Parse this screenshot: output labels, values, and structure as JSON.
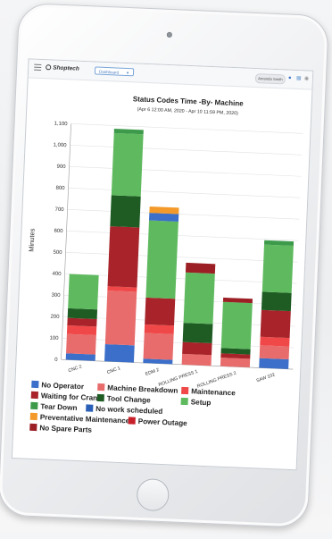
{
  "app": {
    "logo_text": "Shoptech",
    "nav_select_label": "Dashboard",
    "user_label": "Amanda Smith",
    "icons": [
      "menu-icon",
      "bell-icon",
      "grid-icon",
      "user-icon"
    ]
  },
  "colors": {
    "no_operator": "#3b6fc9",
    "machine_breakdown": "#e86c6c",
    "maintenance": "#f04848",
    "waiting_for_crane": "#a8242a",
    "tool_change": "#1e5c24",
    "setup": "#5fba5f",
    "tear_down": "#3c9a4a",
    "no_work_scheduled": "#2a5fb8",
    "preventative_maintenance": "#f39a2a",
    "power_outage": "#c8202a",
    "no_spare_parts": "#9b1f24"
  },
  "chart_data": {
    "type": "bar",
    "stacked": true,
    "title": "Status Codes Time -By- Machine",
    "subtitle": "(Apr 6 12:00 AM, 2020 - Apr 10 11:59 PM, 2020)",
    "xlabel": "",
    "ylabel": "Minutes",
    "ylim": [
      0,
      1100
    ],
    "yticks": [
      "0",
      "100",
      "200",
      "300",
      "400",
      "500",
      "600",
      "700",
      "800",
      "900",
      "1,000",
      "1,100"
    ],
    "grid": true,
    "legend_position": "bottom",
    "categories": [
      "CNC 2",
      "CNC 1",
      "EDM 2",
      "ROLLING PRESS 1",
      "ROLLING PRESS 2",
      "SAW 102"
    ],
    "series": [
      {
        "name": "No Operator",
        "key": "no_operator",
        "values": [
          30,
          80,
          20,
          0,
          0,
          45
        ]
      },
      {
        "name": "No work scheduled",
        "key": "no_work_scheduled",
        "values": [
          0,
          0,
          0,
          0,
          0,
          0
        ]
      },
      {
        "name": "Machine Breakdown",
        "key": "machine_breakdown",
        "values": [
          90,
          250,
          120,
          50,
          40,
          60
        ]
      },
      {
        "name": "Maintenance",
        "key": "maintenance",
        "values": [
          40,
          20,
          40,
          0,
          0,
          40
        ]
      },
      {
        "name": "Power Outage",
        "key": "power_outage",
        "values": [
          0,
          0,
          0,
          0,
          0,
          0
        ]
      },
      {
        "name": "Waiting for Crane",
        "key": "waiting_for_crane",
        "values": [
          35,
          280,
          125,
          55,
          20,
          125
        ]
      },
      {
        "name": "Tool Change",
        "key": "tool_change",
        "values": [
          45,
          145,
          0,
          90,
          25,
          85
        ]
      },
      {
        "name": "Setup",
        "key": "setup",
        "values": [
          160,
          290,
          360,
          235,
          215,
          220
        ]
      },
      {
        "name": "Tear Down",
        "key": "tear_down",
        "values": [
          0,
          20,
          0,
          0,
          0,
          20
        ]
      },
      {
        "name": "No Spare Parts",
        "key": "no_spare_parts",
        "values": [
          0,
          0,
          0,
          45,
          20,
          0
        ]
      },
      {
        "name": "No Operator (top)",
        "key": "no_operator",
        "values": [
          0,
          0,
          35,
          0,
          0,
          0
        ]
      },
      {
        "name": "Preventative Maintenance",
        "key": "preventative_maintenance",
        "values": [
          0,
          0,
          30,
          0,
          0,
          0
        ]
      }
    ],
    "legend": [
      {
        "label": "No Operator",
        "key": "no_operator"
      },
      {
        "label": "Machine Breakdown",
        "key": "machine_breakdown"
      },
      {
        "label": "Maintenance",
        "key": "maintenance"
      },
      {
        "label": "Waiting for Crane",
        "key": "waiting_for_crane"
      },
      {
        "label": "Tool Change",
        "key": "tool_change"
      },
      {
        "label": "Setup",
        "key": "setup"
      },
      {
        "label": "Tear Down",
        "key": "tear_down"
      },
      {
        "label": "No work scheduled",
        "key": "no_work_scheduled"
      },
      {
        "label": "Preventative Maintenance",
        "key": "preventative_maintenance"
      },
      {
        "label": "Power Outage",
        "key": "power_outage"
      },
      {
        "label": "No Spare Parts",
        "key": "no_spare_parts"
      }
    ]
  }
}
